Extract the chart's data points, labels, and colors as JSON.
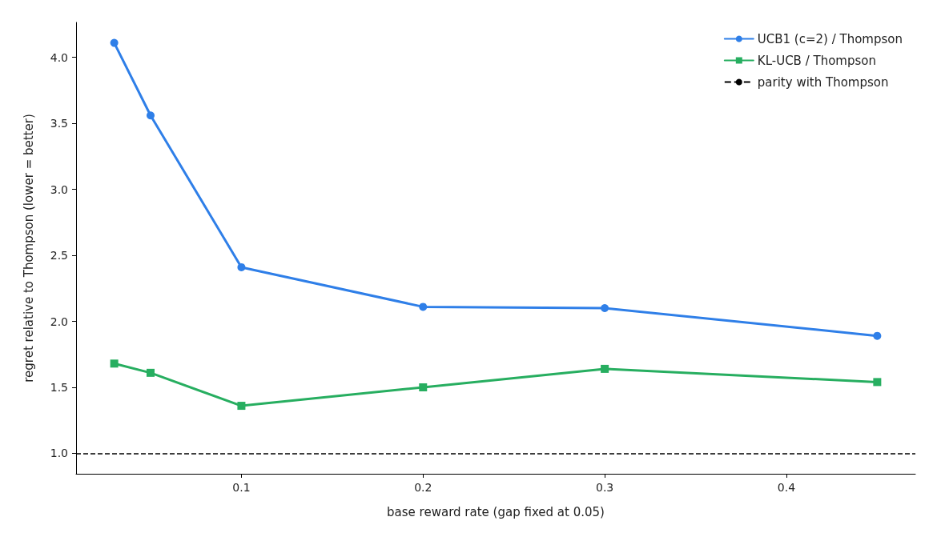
{
  "chart_data": {
    "type": "line",
    "xlabel": "base reward rate (gap fixed at 0.05)",
    "ylabel": "regret relative to Thompson (lower = better)",
    "x": [
      0.03,
      0.05,
      0.1,
      0.2,
      0.3,
      0.45
    ],
    "series": [
      {
        "name": "UCB1 (c=2) / Thompson",
        "color": "#2f7fe8",
        "marker": "circle",
        "values": [
          4.11,
          3.56,
          2.41,
          2.11,
          2.1,
          1.89
        ]
      },
      {
        "name": "KL-UCB / Thompson",
        "color": "#27ae60",
        "marker": "square",
        "values": [
          1.68,
          1.61,
          1.36,
          1.5,
          1.64,
          1.54
        ]
      }
    ],
    "ref_lines": [
      {
        "axis": "y",
        "value": 1.0,
        "label": "parity with Thompson",
        "color": "#000000",
        "line_style": "dashed"
      }
    ],
    "xlim": [
      0.009,
      0.471
    ],
    "ylim": [
      0.845,
      4.265
    ],
    "xticks": [
      0.1,
      0.2,
      0.3,
      0.4
    ],
    "yticks": [
      {
        "value": 1,
        "label": "1.0"
      },
      {
        "value": 1.5,
        "label": "1.5"
      },
      {
        "value": 2,
        "label": "2.0"
      },
      {
        "value": 2.5,
        "label": "2.5"
      },
      {
        "value": 3,
        "label": "3.0"
      },
      {
        "value": 3.5,
        "label": "3.5"
      },
      {
        "value": 4,
        "label": "4.0"
      }
    ],
    "grid": false,
    "legend": "top right",
    "line_style": "solid"
  }
}
